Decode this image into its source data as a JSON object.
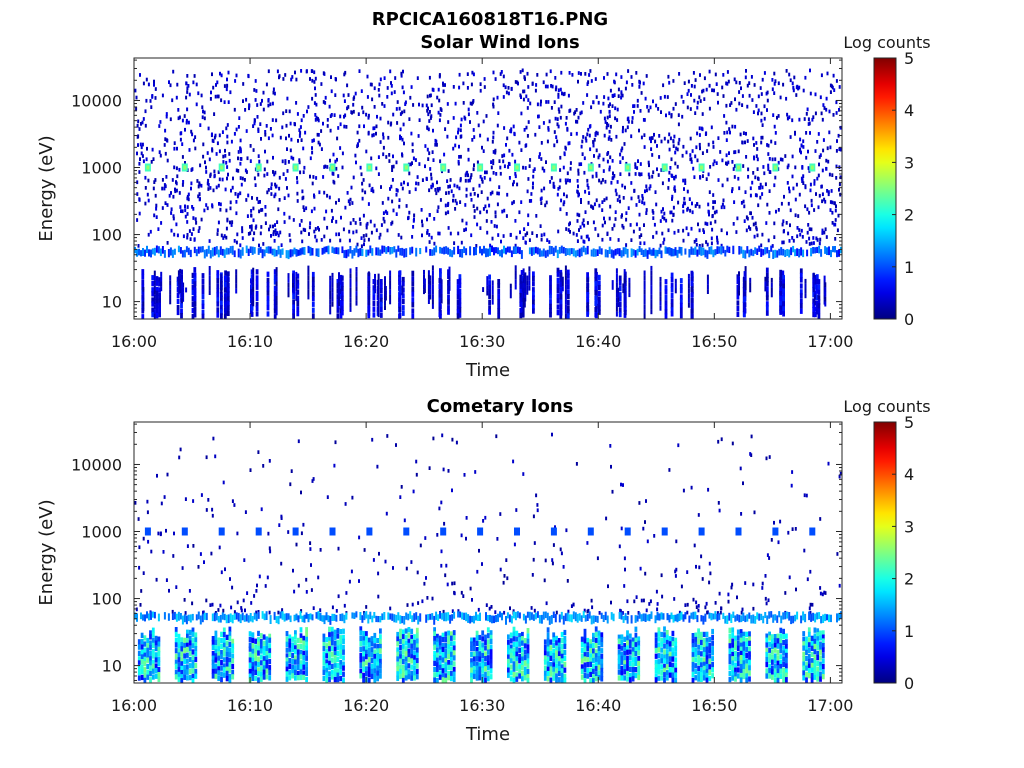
{
  "figure": {
    "title": "RPCICA160818T16.PNG"
  },
  "chart_data": [
    {
      "type": "heatmap",
      "title": "Solar Wind Ions",
      "xlabel": "Time",
      "ylabel": "Energy (eV)",
      "y_scale": "log",
      "xlim": [
        "16:00",
        "17:01"
      ],
      "ylim": [
        5.5,
        43000
      ],
      "x_ticks": [
        "16:00",
        "16:10",
        "16:20",
        "16:30",
        "16:40",
        "16:50",
        "17:00"
      ],
      "y_ticks": [
        {
          "value": 10,
          "label": "10"
        },
        {
          "value": 100,
          "label": "100"
        },
        {
          "value": 1000,
          "label": "1000"
        },
        {
          "value": 10000,
          "label": "10000"
        }
      ],
      "colorbar": {
        "label": "Log counts",
        "min": 0,
        "max": 5,
        "ticks": [
          "0",
          "1",
          "2",
          "3",
          "4",
          "5"
        ],
        "colormap": "jet"
      },
      "features": {
        "background_noise_log_counts": 0.2,
        "band_energy_eV": 55,
        "band_log_counts": 1.0,
        "calibration_spots_energy_eV": 1000,
        "calibration_spots_log_counts": 2.2,
        "low_energy_pulses_max_eV": 30
      }
    },
    {
      "type": "heatmap",
      "title": "Cometary Ions",
      "xlabel": "Time",
      "ylabel": "Energy (eV)",
      "y_scale": "log",
      "xlim": [
        "16:00",
        "17:01"
      ],
      "ylim": [
        5.5,
        43000
      ],
      "x_ticks": [
        "16:00",
        "16:10",
        "16:20",
        "16:30",
        "16:40",
        "16:50",
        "17:00"
      ],
      "y_ticks": [
        {
          "value": 10,
          "label": "10"
        },
        {
          "value": 100,
          "label": "100"
        },
        {
          "value": 1000,
          "label": "1000"
        },
        {
          "value": 10000,
          "label": "10000"
        }
      ],
      "colorbar": {
        "label": "Log counts",
        "min": 0,
        "max": 5,
        "ticks": [
          "0",
          "1",
          "2",
          "3",
          "4",
          "5"
        ],
        "colormap": "jet"
      },
      "features": {
        "background_noise_log_counts": 0.1,
        "band_energy_eV": 52,
        "band_log_counts": 1.3,
        "calibration_spots_energy_eV": 1000,
        "calibration_spots_log_counts": 1.0,
        "low_energy_pulses_max_eV": 35
      }
    }
  ]
}
